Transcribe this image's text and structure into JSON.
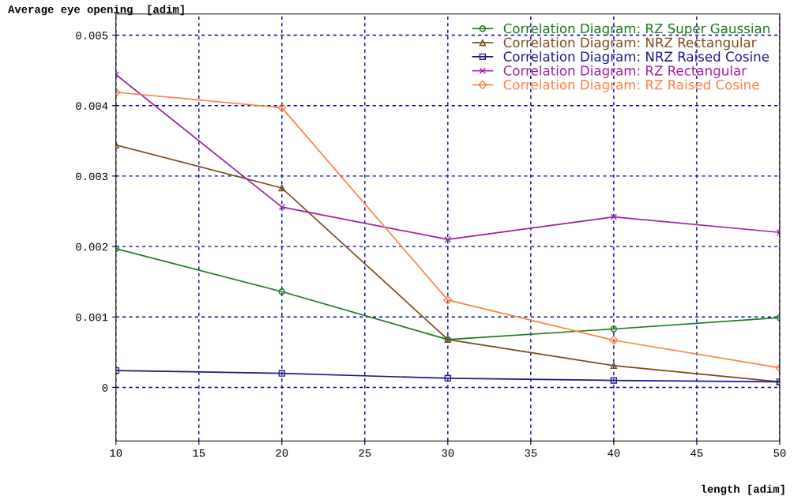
{
  "chart_data": {
    "type": "line",
    "xlabel": "length [adim]",
    "ylabel": "Average eye opening  [adim]",
    "x": [
      10,
      20,
      30,
      40,
      50
    ],
    "xlim": [
      10,
      50
    ],
    "xticks": [
      10,
      15,
      20,
      25,
      30,
      35,
      40,
      45,
      50
    ],
    "ylim": [
      -0.00076,
      0.0053
    ],
    "yticks": [
      0,
      0.001,
      0.002,
      0.003,
      0.004,
      0.005
    ],
    "grid": true,
    "legend": "top right",
    "series": [
      {
        "name": "Correlation Diagram: RZ Super Gaussian",
        "color": "#1a7a1a",
        "marker": "circle",
        "values": [
          0.00197,
          0.00136,
          0.00068,
          0.00083,
          0.00099
        ]
      },
      {
        "name": "Correlation Diagram: NRZ Rectangular",
        "color": "#7a4a1a",
        "marker": "triangle",
        "values": [
          0.00344,
          0.00283,
          0.00068,
          0.00031,
          8e-05
        ]
      },
      {
        "name": "Correlation Diagram: NRZ Raised Cosine",
        "color": "#1a1a8a",
        "marker": "square",
        "values": [
          0.00024,
          0.0002,
          0.00013,
          0.0001,
          8e-05
        ]
      },
      {
        "name": "Correlation Diagram: RZ Rectangular",
        "color": "#a020a0",
        "marker": "cross",
        "values": [
          0.00444,
          0.00256,
          0.0021,
          0.00242,
          0.0022
        ]
      },
      {
        "name": "Correlation Diagram: RZ Raised Cosine",
        "color": "#ff8040",
        "marker": "diamond",
        "values": [
          0.00419,
          0.00397,
          0.00124,
          0.00067,
          0.00028
        ]
      }
    ]
  }
}
